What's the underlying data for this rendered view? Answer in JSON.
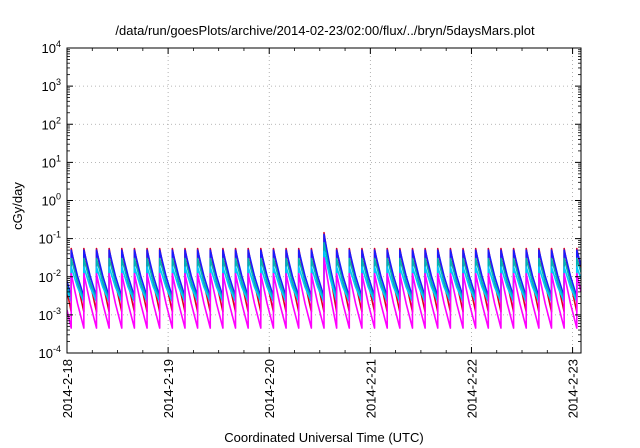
{
  "chart_data": {
    "type": "line",
    "title": "/data/run/goesPlots/archive/2014-02-23/02:00/flux/../bryn/5daysMars.plot",
    "xlabel": "Coordinated Universal Time (UTC)",
    "ylabel": "cGy/day",
    "yscale": "log",
    "ylim": [
      0.0001,
      10000
    ],
    "xlim": [
      "2014-02-18 00:00",
      "2014-02-23 02:00"
    ],
    "grid": true,
    "y_ticks": [
      {
        "base": "10",
        "exp": "-4",
        "value": 0.0001
      },
      {
        "base": "10",
        "exp": "-3",
        "value": 0.001
      },
      {
        "base": "10",
        "exp": "-2",
        "value": 0.01
      },
      {
        "base": "10",
        "exp": "-1",
        "value": 0.1
      },
      {
        "base": "10",
        "exp": "0",
        "value": 1
      },
      {
        "base": "10",
        "exp": "1",
        "value": 10
      },
      {
        "base": "10",
        "exp": "2",
        "value": 100
      },
      {
        "base": "10",
        "exp": "3",
        "value": 1000
      },
      {
        "base": "10",
        "exp": "4",
        "value": 10000
      }
    ],
    "x_ticks": [
      "2014-2-18",
      "2014-2-19",
      "2014-2-20",
      "2014-2-21",
      "2014-2-22",
      "2014-2-23"
    ],
    "sawtooth": {
      "period_hours": 3,
      "first_peak_hour": 1,
      "spike": {
        "start_hour": 58.5,
        "end_hour": 62.5,
        "factor": 2.6
      }
    },
    "series": [
      {
        "color": "#e0001b",
        "peak": 0.055,
        "trough": 0.0012
      },
      {
        "color": "#1a1aff",
        "peak": 0.05,
        "trough": 0.003
      },
      {
        "color": "#00b4b4",
        "peak": 0.03,
        "trough": 0.0025
      },
      {
        "color": "#00c8ff",
        "peak": 0.018,
        "trough": 0.0022
      },
      {
        "color": "#ff00ff",
        "peak": 0.012,
        "trough": 0.00045
      }
    ]
  }
}
